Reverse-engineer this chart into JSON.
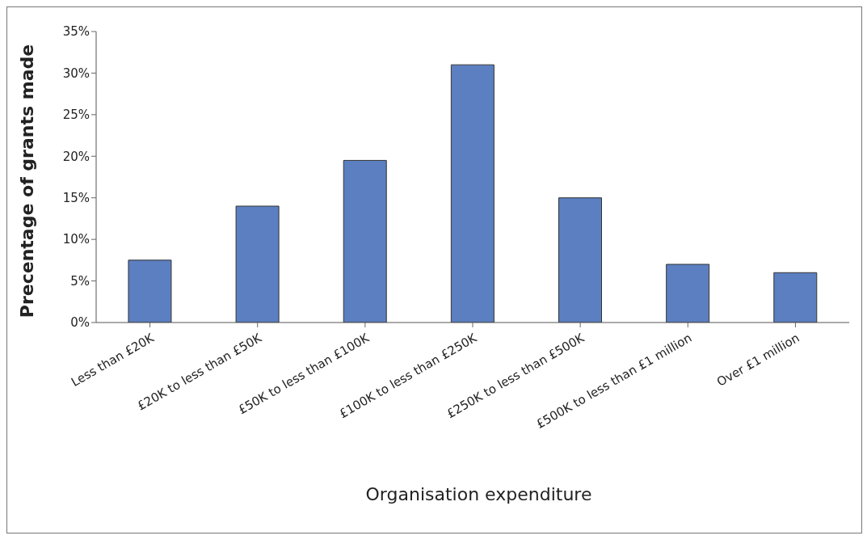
{
  "chart_data": {
    "type": "bar",
    "xlabel": "Organisation expenditure",
    "ylabel": "Precentage of grants made",
    "categories": [
      "Less than £20K",
      "£20K to less than £50K",
      "£50K to less than £100K",
      "£100K to less than £250K",
      "£250K to less than £500K",
      "£500K to less than £1 million",
      "Over £1 million"
    ],
    "values": [
      7.5,
      14,
      19.5,
      31,
      15,
      7,
      6
    ],
    "color": "#5b7fc0",
    "ylim": [
      0,
      35
    ],
    "yticks": [
      {
        "value": 0,
        "label": "0%"
      },
      {
        "value": 5,
        "label": "5%"
      },
      {
        "value": 10,
        "label": "10%"
      },
      {
        "value": 15,
        "label": "15%"
      },
      {
        "value": 20,
        "label": "20%"
      },
      {
        "value": 25,
        "label": "25%"
      },
      {
        "value": 30,
        "label": "30%"
      },
      {
        "value": 35,
        "label": "35%"
      }
    ],
    "grid": false,
    "legend": false
  }
}
